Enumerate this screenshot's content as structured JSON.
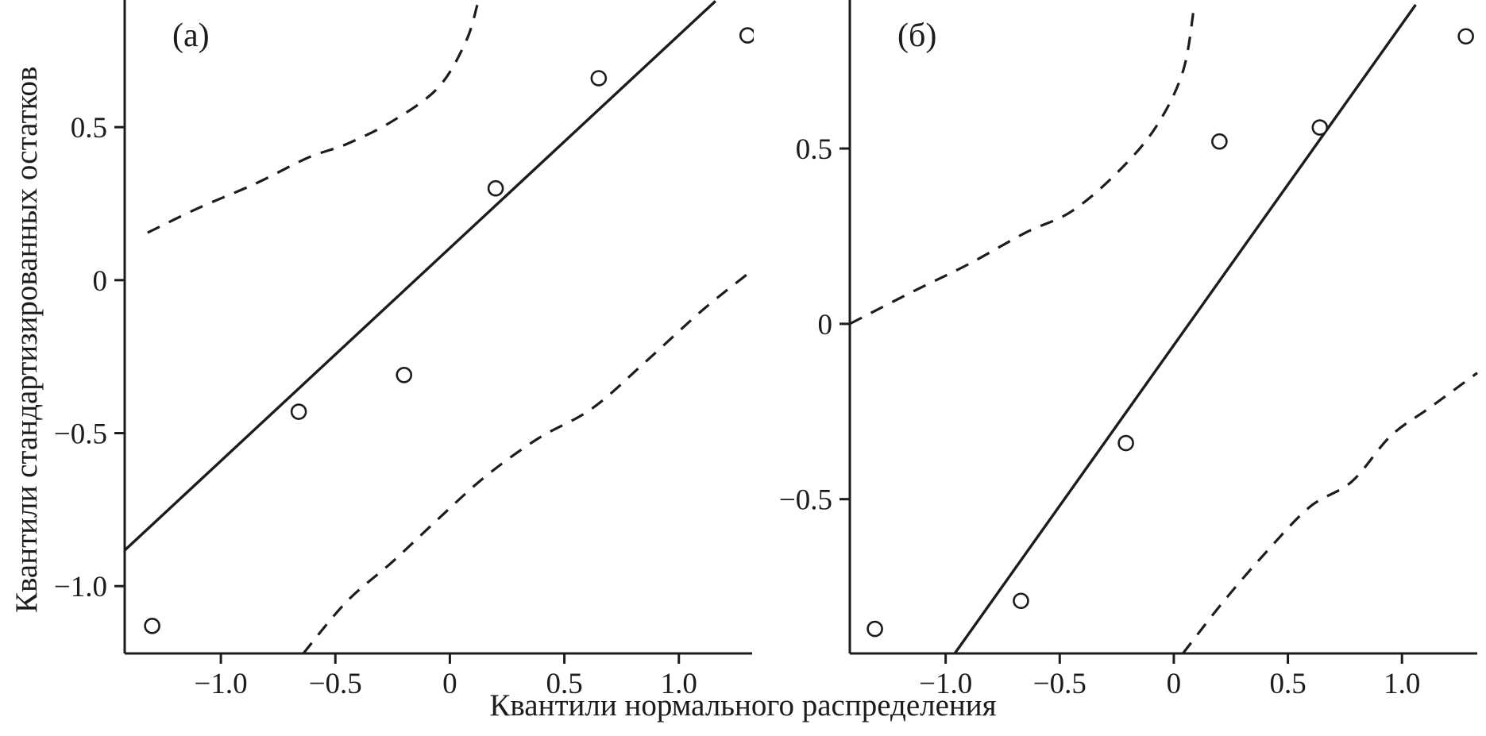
{
  "figure": {
    "background": "#ffffff",
    "ink": "#1c1c1c",
    "xlabel": "Квантили нормального распределения",
    "ylabel": "Квантили стандартизированных остатков"
  },
  "chart_data": [
    {
      "type": "scatter",
      "panel_label": "(а)",
      "title": "",
      "xlabel": "Квантили нормального распределения",
      "ylabel": "Квантили стандартизированных остатков",
      "grid": false,
      "legend": null,
      "xlim": [
        -1.42,
        1.32
      ],
      "ylim": [
        -1.22,
        0.9
      ],
      "xticks": [
        {
          "v": -1.0,
          "label": "−1.0"
        },
        {
          "v": -0.5,
          "label": "−0.5"
        },
        {
          "v": 0,
          "label": "0"
        },
        {
          "v": 0.5,
          "label": "0.5"
        },
        {
          "v": 1.0,
          "label": "1.0"
        }
      ],
      "yticks": [
        {
          "v": 0.5,
          "label": "0.5"
        },
        {
          "v": 0,
          "label": "0"
        },
        {
          "v": -0.5,
          "label": "−0.5"
        },
        {
          "v": -1.0,
          "label": "−1.0"
        }
      ],
      "points": [
        [
          -1.3,
          -1.13
        ],
        [
          -0.66,
          -0.43
        ],
        [
          -0.2,
          -0.31
        ],
        [
          0.2,
          0.3
        ],
        [
          0.65,
          0.66
        ],
        [
          1.3,
          0.8
        ]
      ],
      "fit_line": [
        [
          -1.42,
          -0.883
        ],
        [
          1.16,
          0.912
        ]
      ],
      "confidence_bands": {
        "upper": [
          [
            -1.32,
            0.155
          ],
          [
            -1.1,
            0.235
          ],
          [
            -0.85,
            0.315
          ],
          [
            -0.62,
            0.4
          ],
          [
            -0.45,
            0.445
          ],
          [
            -0.25,
            0.52
          ],
          [
            -0.05,
            0.63
          ],
          [
            0.07,
            0.78
          ],
          [
            0.12,
            0.9
          ]
        ],
        "lower": [
          [
            -0.64,
            -1.22
          ],
          [
            -0.45,
            -1.05
          ],
          [
            -0.25,
            -0.92
          ],
          [
            -0.05,
            -0.78
          ],
          [
            0.15,
            -0.645
          ],
          [
            0.38,
            -0.52
          ],
          [
            0.62,
            -0.42
          ],
          [
            0.85,
            -0.27
          ],
          [
            1.1,
            -0.1
          ],
          [
            1.3,
            0.02
          ]
        ]
      }
    },
    {
      "type": "scatter",
      "panel_label": "(б)",
      "title": "",
      "xlabel": "Квантили нормального распределения",
      "ylabel": "Квантили стандартизированных остатков",
      "grid": false,
      "legend": null,
      "xlim": [
        -1.42,
        1.33
      ],
      "ylim": [
        -0.94,
        0.91
      ],
      "xticks": [
        {
          "v": -1.0,
          "label": "−1.0"
        },
        {
          "v": -0.5,
          "label": "−0.5"
        },
        {
          "v": 0,
          "label": "0"
        },
        {
          "v": 0.5,
          "label": "0.5"
        },
        {
          "v": 1.0,
          "label": "1.0"
        }
      ],
      "yticks": [
        {
          "v": 0.5,
          "label": "0.5"
        },
        {
          "v": 0,
          "label": "0"
        },
        {
          "v": -0.5,
          "label": "−0.5"
        }
      ],
      "points": [
        [
          -1.31,
          -0.87
        ],
        [
          -0.67,
          -0.79
        ],
        [
          -0.21,
          -0.34
        ],
        [
          0.2,
          0.52
        ],
        [
          0.64,
          0.56
        ],
        [
          1.28,
          0.82
        ]
      ],
      "fit_line": [
        [
          -0.96,
          -0.94
        ],
        [
          1.06,
          0.91
        ]
      ],
      "confidence_bands": {
        "upper": [
          [
            -1.42,
            0.0
          ],
          [
            -1.15,
            0.09
          ],
          [
            -0.9,
            0.17
          ],
          [
            -0.65,
            0.26
          ],
          [
            -0.45,
            0.32
          ],
          [
            -0.25,
            0.43
          ],
          [
            -0.08,
            0.56
          ],
          [
            0.04,
            0.72
          ],
          [
            0.09,
            0.91
          ]
        ],
        "lower": [
          [
            0.04,
            -0.94
          ],
          [
            0.22,
            -0.79
          ],
          [
            0.42,
            -0.64
          ],
          [
            0.6,
            -0.52
          ],
          [
            0.78,
            -0.45
          ],
          [
            0.95,
            -0.32
          ],
          [
            1.12,
            -0.24
          ],
          [
            1.33,
            -0.14
          ]
        ]
      }
    }
  ]
}
